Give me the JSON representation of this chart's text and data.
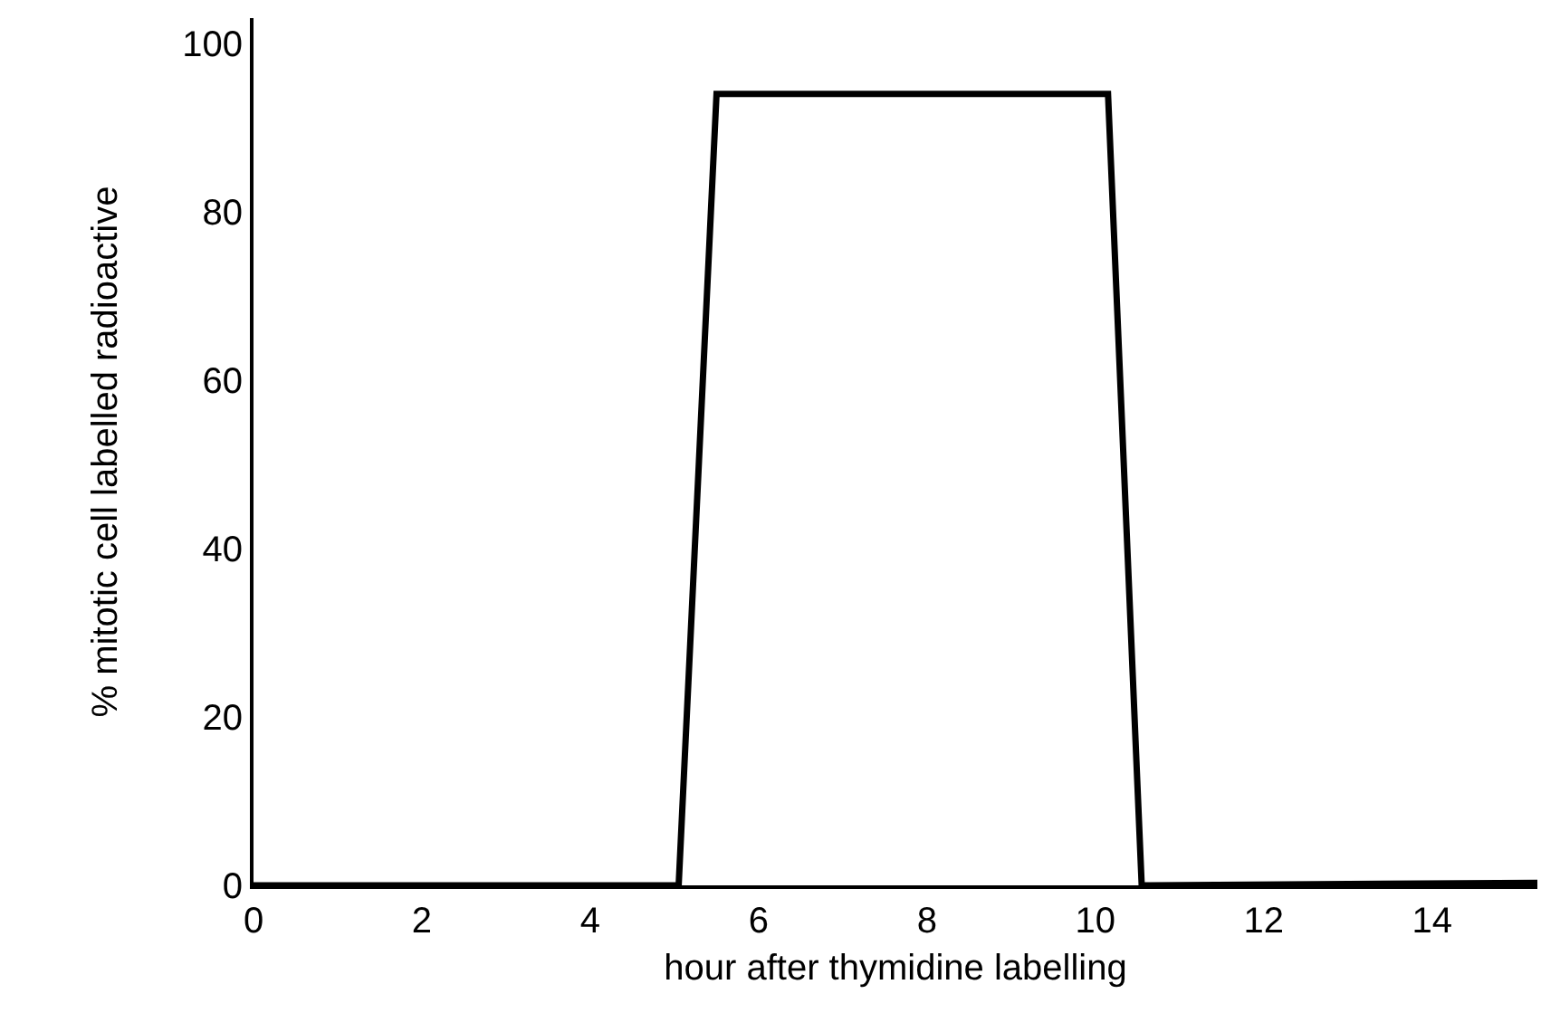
{
  "chart_data": {
    "type": "line",
    "xlabel": "hour after thymidine labelling",
    "ylabel": "% mitotic cell labelled radioactive",
    "x": [
      0,
      5.05,
      5.5,
      10.15,
      10.55,
      15.25
    ],
    "series": [
      {
        "color": "#000000",
        "values": [
          0,
          0,
          94,
          94,
          0,
          0.3
        ]
      }
    ],
    "xlim": [
      0,
      15.25
    ],
    "ylim": [
      0,
      103
    ],
    "xticks": [
      0,
      2,
      4,
      6,
      8,
      10,
      12,
      14
    ],
    "yticks": [
      0,
      20,
      40,
      60,
      80,
      100
    ],
    "grid": false,
    "marker": "none",
    "line_style": "solid"
  }
}
